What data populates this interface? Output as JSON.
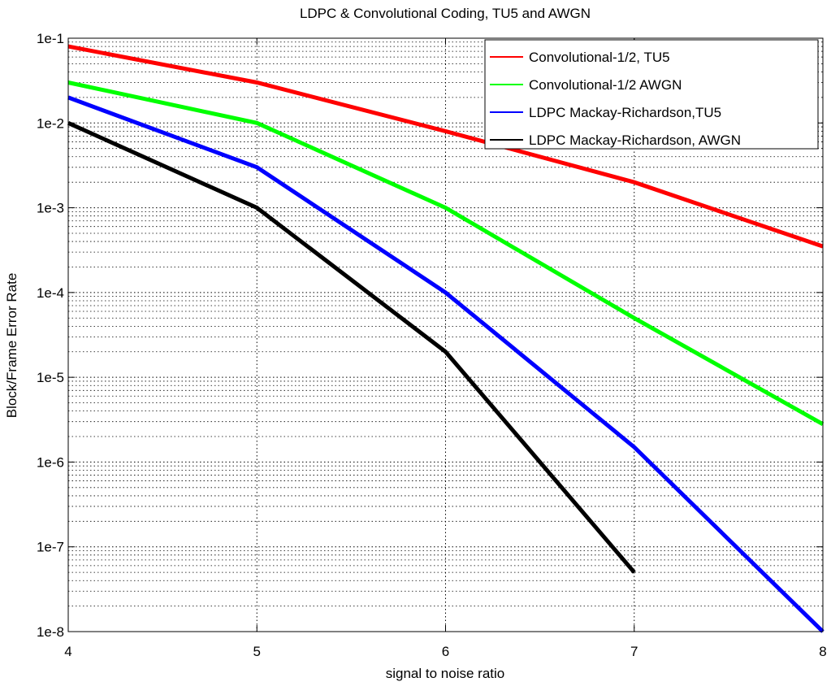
{
  "chart_data": {
    "type": "line",
    "title": "LDPC & Convolutional Coding, TU5 and AWGN",
    "xlabel": "signal to noise ratio",
    "ylabel": "Block/Frame Error Rate",
    "xlim": [
      4,
      8
    ],
    "ylim": [
      1e-08,
      0.1
    ],
    "yscale": "log",
    "grid": true,
    "legend_position": "top-right",
    "x_ticks": [
      "4",
      "5",
      "6",
      "7",
      "8"
    ],
    "y_ticks": [
      "1e-8",
      "1e-7",
      "1e-6",
      "1e-5",
      "1e-4",
      "1e-3",
      "1e-2",
      "1e-1"
    ],
    "series": [
      {
        "name": "Convolutional-1/2, TU5",
        "color": "#ff0000",
        "x": [
          4,
          5,
          6,
          7,
          8
        ],
        "y": [
          0.08,
          0.03,
          0.008,
          0.002,
          0.00035
        ]
      },
      {
        "name": "Convolutional-1/2 AWGN",
        "color": "#00ff00",
        "x": [
          4,
          5,
          6,
          7,
          8
        ],
        "y": [
          0.03,
          0.01,
          0.001,
          5e-05,
          2.8e-06
        ]
      },
      {
        "name": "LDPC Mackay-Richardson,TU5",
        "color": "#0000ff",
        "x": [
          4,
          5,
          6,
          7,
          8
        ],
        "y": [
          0.02,
          0.003,
          0.0001,
          1.5e-06,
          1e-08
        ]
      },
      {
        "name": "LDPC Mackay-Richardson, AWGN",
        "color": "#000000",
        "x": [
          4,
          5,
          6,
          7
        ],
        "y": [
          0.01,
          0.001,
          2e-05,
          5e-08
        ]
      }
    ]
  }
}
